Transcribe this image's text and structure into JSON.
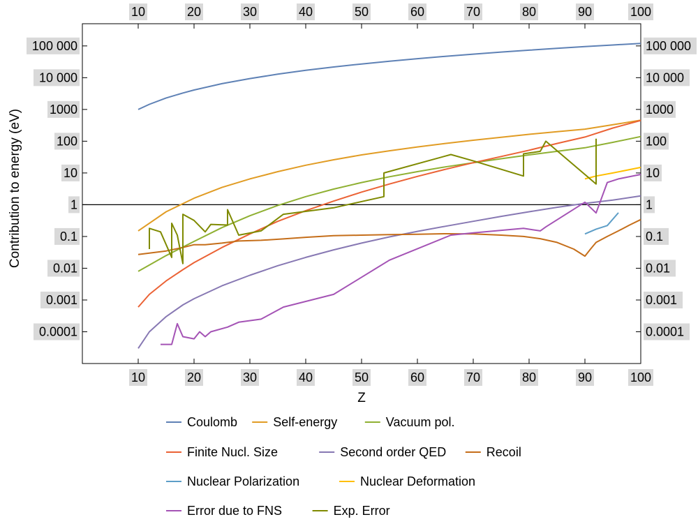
{
  "chart_data": {
    "type": "line",
    "xlabel": "Z",
    "ylabel": "Contribution to energy (eV)",
    "xlim": [
      0,
      100
    ],
    "ylim": [
      1e-05,
      500000
    ],
    "yscale": "log",
    "x_ticks": [
      10,
      20,
      30,
      40,
      50,
      60,
      70,
      80,
      90,
      100
    ],
    "x_tick_labels": [
      "10",
      "20",
      "30",
      "40",
      "50",
      "60",
      "70",
      "80",
      "90",
      "100"
    ],
    "y_ticks": [
      0.0001,
      0.001,
      0.01,
      0.1,
      1,
      10,
      100,
      1000,
      10000,
      100000
    ],
    "y_tick_labels": [
      "0.0001",
      "0.001",
      "0.01",
      "0.1",
      "1",
      "10",
      "100",
      "1000",
      "10 000",
      "100 000"
    ],
    "reference_line_y": 1,
    "legend_position": "bottom",
    "series": [
      {
        "name": "Coulomb",
        "color": "#5e81b5",
        "x": [
          10,
          12,
          15,
          18,
          20,
          25,
          30,
          35,
          40,
          45,
          50,
          55,
          60,
          65,
          70,
          75,
          80,
          85,
          90,
          95,
          100
        ],
        "y": [
          1000,
          1450,
          2300,
          3300,
          4100,
          6500,
          9400,
          12900,
          17000,
          21700,
          27000,
          33000,
          39700,
          47000,
          55000,
          64000,
          73500,
          84000,
          95000,
          107000,
          120000
        ]
      },
      {
        "name": "Self-energy",
        "color": "#e19c24",
        "x": [
          10,
          15,
          20,
          25,
          30,
          35,
          40,
          45,
          50,
          55,
          60,
          65,
          70,
          75,
          80,
          85,
          90,
          95,
          100
        ],
        "y": [
          0.15,
          0.6,
          1.6,
          3.5,
          6.5,
          11,
          17.5,
          26,
          37,
          50,
          66,
          85,
          107,
          133,
          165,
          200,
          240,
          330,
          460
        ]
      },
      {
        "name": "Vacuum pol.",
        "color": "#8fb032",
        "x": [
          10,
          15,
          20,
          25,
          30,
          35,
          40,
          45,
          50,
          55,
          60,
          65,
          70,
          75,
          80,
          85,
          90,
          95,
          100
        ],
        "y": [
          0.008,
          0.025,
          0.07,
          0.19,
          0.45,
          0.95,
          1.8,
          3.1,
          5,
          7.6,
          11,
          15.5,
          21,
          28,
          37,
          48,
          62,
          92,
          140
        ]
      },
      {
        "name": "Finite Nucl. Size",
        "color": "#eb6235",
        "x": [
          10,
          12,
          15,
          18,
          20,
          25,
          30,
          35,
          40,
          45,
          50,
          55,
          60,
          65,
          70,
          75,
          80,
          85,
          90,
          95,
          100
        ],
        "y": [
          0.0006,
          0.0015,
          0.004,
          0.009,
          0.015,
          0.045,
          0.12,
          0.3,
          0.65,
          1.3,
          2.5,
          4.5,
          7.8,
          13,
          21,
          33,
          52,
          85,
          135,
          260,
          450
        ]
      },
      {
        "name": "Second order QED",
        "color": "#8778b3",
        "x": [
          10,
          12,
          15,
          18,
          20,
          25,
          30,
          35,
          40,
          45,
          50,
          55,
          60,
          65,
          70,
          75,
          80,
          85,
          90,
          95,
          100
        ],
        "y": [
          3e-05,
          0.0001,
          0.0003,
          0.0007,
          0.0011,
          0.0028,
          0.006,
          0.012,
          0.022,
          0.038,
          0.062,
          0.097,
          0.145,
          0.21,
          0.3,
          0.43,
          0.6,
          0.83,
          1.1,
          1.4,
          1.9
        ]
      },
      {
        "name": "Recoil",
        "color": "#c56e1a",
        "x": [
          10,
          15,
          18,
          20,
          22,
          25,
          28,
          32,
          36,
          40,
          45,
          50,
          55,
          60,
          65,
          70,
          75,
          79,
          82,
          85,
          88,
          90,
          91,
          92,
          94,
          96,
          98,
          100
        ],
        "y": [
          0.027,
          0.035,
          0.045,
          0.055,
          0.055,
          0.062,
          0.072,
          0.076,
          0.084,
          0.094,
          0.106,
          0.11,
          0.115,
          0.118,
          0.122,
          0.12,
          0.11,
          0.1,
          0.085,
          0.065,
          0.04,
          0.024,
          0.04,
          0.065,
          0.1,
          0.15,
          0.23,
          0.34
        ]
      },
      {
        "name": "Nuclear Polarization",
        "color": "#5d9ec7",
        "x": [
          90,
          92,
          94,
          96
        ],
        "y": [
          0.12,
          0.17,
          0.22,
          0.56
        ]
      },
      {
        "name": "Nuclear Deformation",
        "color": "#ffbf00",
        "x": [
          90,
          92,
          95,
          100
        ],
        "y": [
          6.5,
          8,
          10,
          15
        ]
      },
      {
        "name": "Error due to FNS",
        "color": "#a453b5",
        "x": [
          14,
          16,
          17,
          18,
          20,
          21,
          22,
          23,
          26,
          28,
          32,
          36,
          40,
          45,
          55,
          66,
          70,
          79,
          82,
          83,
          90,
          92,
          94,
          96,
          100
        ],
        "y": [
          4e-05,
          4e-05,
          0.00018,
          7e-05,
          6e-05,
          0.0001,
          7e-05,
          0.0001,
          0.00014,
          0.0002,
          0.00025,
          0.0006,
          0.0009,
          0.0015,
          0.018,
          0.11,
          0.13,
          0.18,
          0.15,
          0.2,
          1.2,
          0.55,
          5,
          6.5,
          9
        ]
      },
      {
        "name": "Exp. Error",
        "color": "#7f8a00",
        "x": [
          12,
          12,
          14,
          16,
          16,
          17,
          18,
          18,
          20,
          22,
          23,
          26,
          26,
          28,
          32,
          36,
          45,
          54,
          54,
          66,
          70,
          79,
          79,
          82,
          83,
          92,
          92
        ],
        "y": [
          0.04,
          0.18,
          0.14,
          0.022,
          0.26,
          0.11,
          0.014,
          0.5,
          0.32,
          0.14,
          0.24,
          0.23,
          0.7,
          0.11,
          0.15,
          0.5,
          0.8,
          1.8,
          10,
          38,
          24,
          8,
          40,
          48,
          100,
          4.5,
          120
        ]
      }
    ]
  }
}
